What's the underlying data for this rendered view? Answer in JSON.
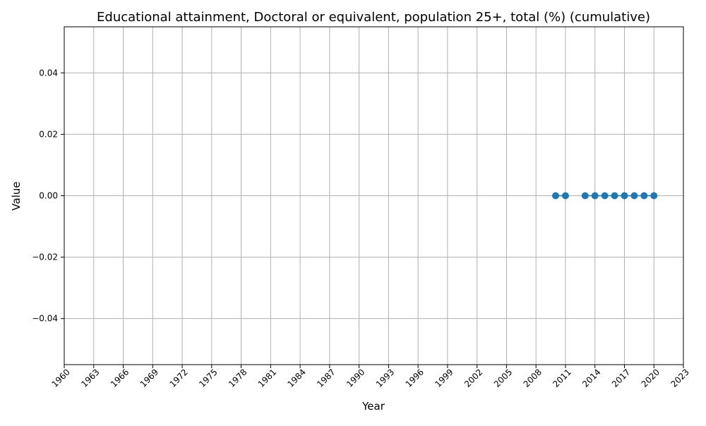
{
  "chart_data": {
    "type": "line",
    "title": "Educational attainment, Doctoral or equivalent, population 25+, total (%) (cumulative)",
    "xlabel": "Year",
    "ylabel": "Value",
    "xlim": [
      1960,
      2023
    ],
    "ylim": [
      -0.055,
      0.055
    ],
    "x_ticks": [
      1960,
      1963,
      1966,
      1969,
      1972,
      1975,
      1978,
      1981,
      1984,
      1987,
      1990,
      1993,
      1996,
      1999,
      2002,
      2005,
      2008,
      2011,
      2014,
      2017,
      2020,
      2023
    ],
    "y_ticks": [
      -0.04,
      -0.02,
      0.0,
      0.02,
      0.04
    ],
    "y_tick_labels": [
      "−0.04",
      "−0.02",
      "0.00",
      "0.02",
      "0.04"
    ],
    "grid": true,
    "series": [
      {
        "color": "#1f77b4",
        "segments": [
          [
            [
              2010,
              0.0
            ],
            [
              2011,
              0.0
            ]
          ],
          [
            [
              2013,
              0.0
            ],
            [
              2014,
              0.0
            ],
            [
              2015,
              0.0
            ],
            [
              2016,
              0.0
            ],
            [
              2017,
              0.0
            ],
            [
              2018,
              0.0
            ],
            [
              2019,
              0.0
            ],
            [
              2020,
              0.0
            ]
          ]
        ]
      }
    ]
  }
}
